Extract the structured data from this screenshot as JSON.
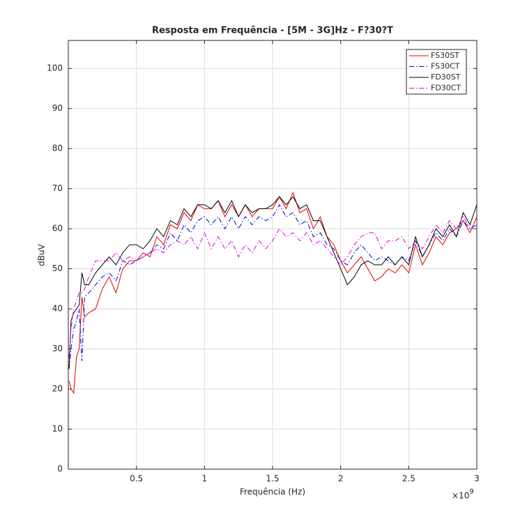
{
  "chart_data": {
    "type": "line",
    "title": "Resposta em Frequência - [5M - 3G]Hz - F?30?T",
    "x_label": "Frequência (Hz)",
    "y_label": "dBuV",
    "x_multiplier_base": "×10",
    "x_multiplier_exp": "9",
    "x": [
      0.005,
      0.02,
      0.04,
      0.06,
      0.08,
      0.1,
      0.12,
      0.15,
      0.2,
      0.25,
      0.3,
      0.35,
      0.4,
      0.45,
      0.5,
      0.55,
      0.6,
      0.65,
      0.7,
      0.75,
      0.8,
      0.85,
      0.9,
      0.95,
      1.0,
      1.05,
      1.1,
      1.15,
      1.2,
      1.25,
      1.3,
      1.35,
      1.4,
      1.45,
      1.5,
      1.55,
      1.6,
      1.65,
      1.7,
      1.75,
      1.8,
      1.85,
      1.9,
      1.95,
      2.0,
      2.05,
      2.1,
      2.15,
      2.2,
      2.25,
      2.3,
      2.35,
      2.4,
      2.45,
      2.5,
      2.55,
      2.6,
      2.65,
      2.7,
      2.75,
      2.8,
      2.85,
      2.9,
      2.95,
      3.0
    ],
    "series": [
      {
        "name": "FS30ST",
        "color": "#e00000",
        "linestyle": "-",
        "values": [
          22,
          20,
          19,
          28,
          30,
          43,
          38,
          39,
          40,
          45,
          48,
          44,
          50,
          52,
          52,
          54,
          53,
          58,
          56,
          61,
          60,
          64,
          62,
          66,
          65,
          65,
          67,
          63,
          66,
          63,
          66,
          63,
          65,
          65,
          65,
          68,
          65,
          69,
          64,
          65,
          60,
          63,
          58,
          56,
          52,
          49,
          51,
          53,
          50,
          47,
          48,
          50,
          49,
          51,
          49,
          56,
          51,
          54,
          58,
          56,
          59,
          60,
          62,
          59,
          63
        ]
      },
      {
        "name": "FS30CT",
        "color": "#0000e0",
        "linestyle": "-.",
        "values": [
          25,
          30,
          35,
          37,
          40,
          27,
          43,
          44,
          46,
          48,
          49,
          47,
          52,
          51,
          52,
          53,
          54,
          56,
          55,
          59,
          57,
          61,
          59,
          62,
          63,
          61,
          63,
          60,
          63,
          60,
          63,
          61,
          63,
          62,
          63,
          66,
          63,
          64,
          61,
          62,
          58,
          59,
          56,
          55,
          52,
          51,
          54,
          56,
          54,
          52,
          53,
          52,
          51,
          53,
          52,
          57,
          53,
          56,
          59,
          57,
          60,
          58,
          62,
          60,
          61
        ]
      },
      {
        "name": "FD30ST",
        "color": "#000000",
        "linestyle": "-",
        "values": [
          25,
          37,
          39,
          40,
          41,
          49,
          46,
          46,
          49,
          51,
          53,
          51,
          54,
          56,
          56,
          55,
          57,
          60,
          58,
          62,
          61,
          65,
          63,
          66,
          66,
          65,
          67,
          64,
          67,
          63,
          66,
          64,
          65,
          65,
          66,
          68,
          66,
          68,
          65,
          66,
          62,
          62,
          58,
          54,
          50,
          46,
          48,
          51,
          52,
          51,
          51,
          53,
          51,
          53,
          51,
          58,
          53,
          56,
          60,
          58,
          61,
          58,
          64,
          61,
          66
        ]
      },
      {
        "name": "FD30CT",
        "color": "#e000e0",
        "linestyle": "-.",
        "values": [
          28,
          35,
          40,
          42,
          44,
          44,
          45,
          48,
          52,
          52,
          52,
          54,
          52,
          53,
          52,
          53,
          54,
          55,
          54,
          56,
          57,
          56,
          58,
          55,
          59,
          55,
          58,
          55,
          57,
          53,
          56,
          54,
          57,
          55,
          57,
          60,
          58,
          59,
          57,
          59,
          56,
          57,
          55,
          53,
          51,
          53,
          56,
          58,
          59,
          59,
          55,
          57,
          57,
          58,
          55,
          57,
          55,
          58,
          61,
          59,
          62,
          60,
          63,
          60,
          60
        ]
      }
    ],
    "xlim": [
      0,
      3
    ],
    "xticks": [
      0.5,
      1,
      1.5,
      2,
      2.5,
      3
    ],
    "ylim": [
      0,
      107
    ],
    "yticks": [
      0,
      10,
      20,
      30,
      40,
      50,
      60,
      70,
      80,
      90,
      100
    ],
    "grid": true,
    "legend": "upper right"
  }
}
